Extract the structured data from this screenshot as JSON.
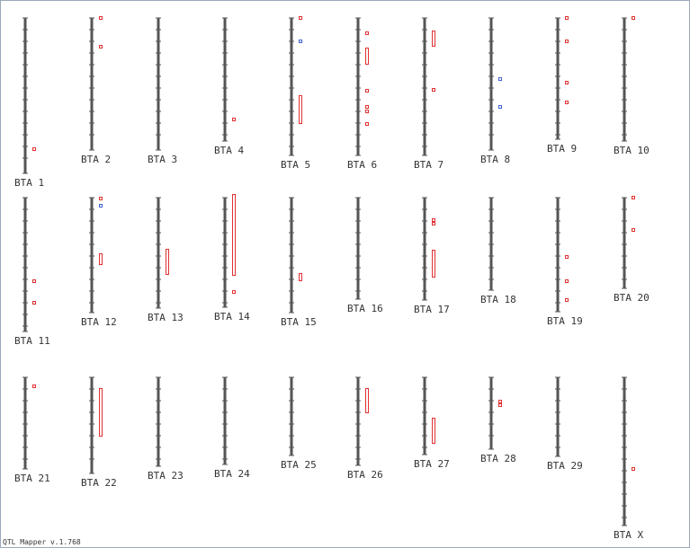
{
  "chromosomes": [
    "BTA 1",
    "BTA 2",
    "BTA 3",
    "BTA 4",
    "BTA 5",
    "BTA 6",
    "BTA 7",
    "BTA 8",
    "BTA 9",
    "BTA 10",
    "BTA 11",
    "BTA 12",
    "BTA 13",
    "BTA 14",
    "BTA 15",
    "BTA 16",
    "BTA 17",
    "BTA 18",
    "BTA 19",
    "BTA 20",
    "BTA 21",
    "BTA 22",
    "BTA 23",
    "BTA 24",
    "BTA 25",
    "BTA 26",
    "BTA 27",
    "BTA 28",
    "BTA 29",
    "BTA X"
  ],
  "footer": "QTL Mapper v.1.768"
}
